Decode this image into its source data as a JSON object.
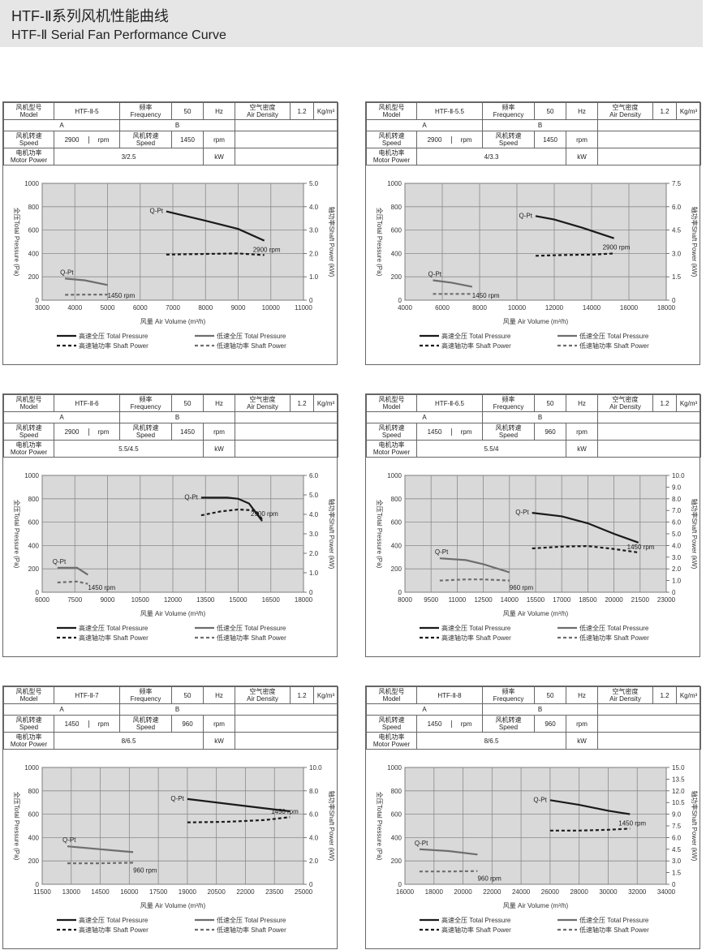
{
  "page": {
    "title_cn": "HTF-Ⅱ系列风机性能曲线",
    "title_en": "HTF-Ⅱ Serial Fan Performance Curve"
  },
  "colors": {
    "high": "#1a1a1a",
    "low": "#6e6e6e",
    "plot_bg": "#d9d9d9",
    "grid": "#8a8a8a"
  },
  "common": {
    "model_cn": "风机型号",
    "model_en": "Model",
    "freq_cn": "频率",
    "freq_en": "Frequency",
    "freq_val": "50",
    "freq_unit": "Hz",
    "dens_cn": "空气密度",
    "dens_en": "Air Density",
    "dens_val": "1.2",
    "dens_unit": "Kg/m³",
    "a_label": "A",
    "b_label": "B",
    "speed_cn": "风机转速",
    "speed_en": "Speed",
    "rpm": "rpm",
    "power_cn": "电机功率",
    "power_en": "Motor Power",
    "kw": "kW",
    "xlabel": "风量 Air Volume (m³/h)",
    "ylabel_left": "全压Total Pressure (Pa)",
    "ylabel_right": "轴功率Shaft Power (kW)",
    "qpt": "Q-Pt",
    "legend": [
      "高速全压 Total Pressure",
      "低速全压 Total Pressure",
      "高速轴功率 Shaft Power",
      "低速轴功率 Shaft Power"
    ]
  },
  "chart_data": [
    {
      "type": "line",
      "model": "HTF-Ⅱ-5",
      "speedA": "2900",
      "speedB": "1450",
      "power": "3/2.5",
      "xlim": [
        3000,
        11000
      ],
      "xticks": [
        3000,
        4000,
        5000,
        6000,
        7000,
        8000,
        9000,
        10000,
        11000
      ],
      "ylim": [
        0,
        1000
      ],
      "y2lim": [
        0,
        5
      ],
      "y2ticks": [
        "0",
        "1.0",
        "2.0",
        "3.0",
        "4.0",
        "5.0"
      ],
      "high_label": "2900 rpm",
      "low_label": "1450 rpm",
      "series": [
        {
          "name": "高速全压 Total Pressure",
          "x": [
            6800,
            8000,
            9000,
            9800
          ],
          "y": [
            760,
            680,
            610,
            510
          ]
        },
        {
          "name": "低速全压 Total Pressure",
          "x": [
            3700,
            4300,
            5000
          ],
          "y": [
            185,
            170,
            130
          ]
        },
        {
          "name": "高速轴功率 Shaft Power",
          "x": [
            6800,
            8000,
            9000,
            9800
          ],
          "y": [
            1.95,
            1.98,
            2.0,
            1.93
          ]
        },
        {
          "name": "低速轴功率 Shaft Power",
          "x": [
            3700,
            4300,
            5000
          ],
          "y": [
            0.23,
            0.24,
            0.24
          ]
        }
      ]
    },
    {
      "type": "line",
      "model": "HTF-Ⅱ-5.5",
      "speedA": "2900",
      "speedB": "1450",
      "power": "4/3.3",
      "xlim": [
        4000,
        18000
      ],
      "xticks": [
        4000,
        6000,
        8000,
        10000,
        12000,
        14000,
        16000,
        18000
      ],
      "ylim": [
        0,
        1000
      ],
      "y2lim": [
        0,
        7.5
      ],
      "y2ticks": [
        "0",
        "1.5",
        "3.0",
        "4.5",
        "6.0",
        "7.5"
      ],
      "high_label": "2900 rpm",
      "low_label": "1450 rpm",
      "series": [
        {
          "name": "高速全压 Total Pressure",
          "x": [
            11000,
            12000,
            13500,
            15200
          ],
          "y": [
            720,
            690,
            620,
            530
          ]
        },
        {
          "name": "低速全压 Total Pressure",
          "x": [
            5500,
            6500,
            7600
          ],
          "y": [
            170,
            150,
            115
          ]
        },
        {
          "name": "高速轴功率 Shaft Power",
          "x": [
            11000,
            12500,
            14000,
            15200
          ],
          "y": [
            2.85,
            2.9,
            2.92,
            3.0
          ]
        },
        {
          "name": "低速轴功率 Shaft Power",
          "x": [
            5500,
            6500,
            7600
          ],
          "y": [
            0.4,
            0.4,
            0.4
          ]
        }
      ]
    },
    {
      "type": "line",
      "model": "HTF-Ⅱ-6",
      "speedA": "2900",
      "speedB": "1450",
      "power": "5.5/4.5",
      "xlim": [
        6000,
        18000
      ],
      "xticks": [
        6000,
        7500,
        9000,
        10500,
        12000,
        13500,
        15000,
        16500,
        18000
      ],
      "ylim": [
        0,
        1000
      ],
      "y2lim": [
        0,
        6
      ],
      "y2ticks": [
        "0",
        "1.0",
        "2.0",
        "3.0",
        "4.0",
        "5.0",
        "6.0"
      ],
      "high_label": "2900 rpm",
      "low_label": "1450 rpm",
      "series": [
        {
          "name": "高速全压 Total Pressure",
          "x": [
            13300,
            14500,
            15000,
            15500,
            16100
          ],
          "y": [
            810,
            810,
            800,
            760,
            610
          ]
        },
        {
          "name": "低速全压 Total Pressure",
          "x": [
            6700,
            7600,
            8100
          ],
          "y": [
            210,
            210,
            150
          ]
        },
        {
          "name": "高速轴功率 Shaft Power",
          "x": [
            13300,
            14200,
            15000,
            15800,
            16100
          ],
          "y": [
            3.95,
            4.15,
            4.25,
            4.2,
            3.75
          ]
        },
        {
          "name": "低速轴功率 Shaft Power",
          "x": [
            6700,
            7600,
            8100
          ],
          "y": [
            0.5,
            0.55,
            0.43
          ]
        }
      ]
    },
    {
      "type": "line",
      "model": "HTF-Ⅱ-6.5",
      "speedA": "1450",
      "speedB": "960",
      "power": "5.5/4",
      "xlim": [
        8000,
        23000
      ],
      "xticks": [
        8000,
        9500,
        11000,
        12500,
        14000,
        15500,
        17000,
        18500,
        20000,
        21500,
        23000
      ],
      "ylim": [
        0,
        1000
      ],
      "y2lim": [
        0,
        10
      ],
      "y2ticks": [
        "0",
        "1.0",
        "2.0",
        "3.0",
        "4.0",
        "5.0",
        "6.0",
        "7.0",
        "8.0",
        "9.0",
        "10.0"
      ],
      "high_label": "1450 rpm",
      "low_label": "960 rpm",
      "series": [
        {
          "name": "高速全压 Total Pressure",
          "x": [
            15300,
            17000,
            18500,
            20000,
            21400
          ],
          "y": [
            680,
            650,
            590,
            500,
            425
          ]
        },
        {
          "name": "低速全压 Total Pressure",
          "x": [
            10000,
            11500,
            12500,
            14000
          ],
          "y": [
            290,
            275,
            240,
            170
          ]
        },
        {
          "name": "高速轴功率 Shaft Power",
          "x": [
            15300,
            17000,
            18500,
            20000,
            21400
          ],
          "y": [
            3.75,
            3.9,
            3.95,
            3.7,
            3.4
          ]
        },
        {
          "name": "低速轴功率 Shaft Power",
          "x": [
            10000,
            11500,
            12500,
            14000
          ],
          "y": [
            1.0,
            1.1,
            1.1,
            1.0
          ]
        }
      ]
    },
    {
      "type": "line",
      "model": "HTF-Ⅱ-7",
      "speedA": "1450",
      "speedB": "960",
      "power": "8/6.5",
      "xlim": [
        11500,
        25000
      ],
      "xticks": [
        11500,
        13000,
        14500,
        16000,
        17500,
        19000,
        20500,
        22000,
        23500,
        25000
      ],
      "ylim": [
        0,
        1000
      ],
      "y2lim": [
        0,
        10
      ],
      "y2ticks": [
        "0",
        "2.0",
        "4.0",
        "6.0",
        "8.0",
        "10.0"
      ],
      "high_label": "1450 rpm",
      "low_label": "960 rpm",
      "series": [
        {
          "name": "高速全压 Total Pressure",
          "x": [
            19000,
            21000,
            23000,
            24300
          ],
          "y": [
            730,
            690,
            650,
            625
          ]
        },
        {
          "name": "低速全压 Total Pressure",
          "x": [
            12800,
            14500,
            16200
          ],
          "y": [
            325,
            300,
            275
          ]
        },
        {
          "name": "高速轴功率 Shaft Power",
          "x": [
            19000,
            21000,
            23000,
            24300
          ],
          "y": [
            5.3,
            5.35,
            5.5,
            5.75
          ]
        },
        {
          "name": "低速轴功率 Shaft Power",
          "x": [
            12800,
            14500,
            16200
          ],
          "y": [
            1.8,
            1.8,
            1.85
          ]
        }
      ]
    },
    {
      "type": "line",
      "model": "HTF-Ⅱ-8",
      "speedA": "1450",
      "speedB": "960",
      "power": "8/6.5",
      "xlim": [
        16000,
        34000
      ],
      "xticks": [
        16000,
        18000,
        20000,
        22000,
        24000,
        26000,
        28000,
        30000,
        32000,
        34000
      ],
      "ylim": [
        0,
        1000
      ],
      "y2lim": [
        0,
        15
      ],
      "y2ticks": [
        "0",
        "1.5",
        "3.0",
        "4.5",
        "6.0",
        "7.5",
        "9.0",
        "10.5",
        "12.0",
        "13.5",
        "15.0"
      ],
      "high_label": "1450 rpm",
      "low_label": "960 rpm",
      "series": [
        {
          "name": "高速全压 Total Pressure",
          "x": [
            26000,
            28000,
            30000,
            31500
          ],
          "y": [
            720,
            680,
            630,
            600
          ]
        },
        {
          "name": "低速全压 Total Pressure",
          "x": [
            17000,
            19000,
            21000
          ],
          "y": [
            300,
            285,
            255
          ]
        },
        {
          "name": "高速轴功率 Shaft Power",
          "x": [
            26000,
            28000,
            30000,
            31500
          ],
          "y": [
            6.9,
            6.9,
            7.0,
            7.15
          ]
        },
        {
          "name": "低速轴功率 Shaft Power",
          "x": [
            17000,
            19000,
            21000
          ],
          "y": [
            1.65,
            1.65,
            1.7
          ]
        }
      ]
    }
  ]
}
